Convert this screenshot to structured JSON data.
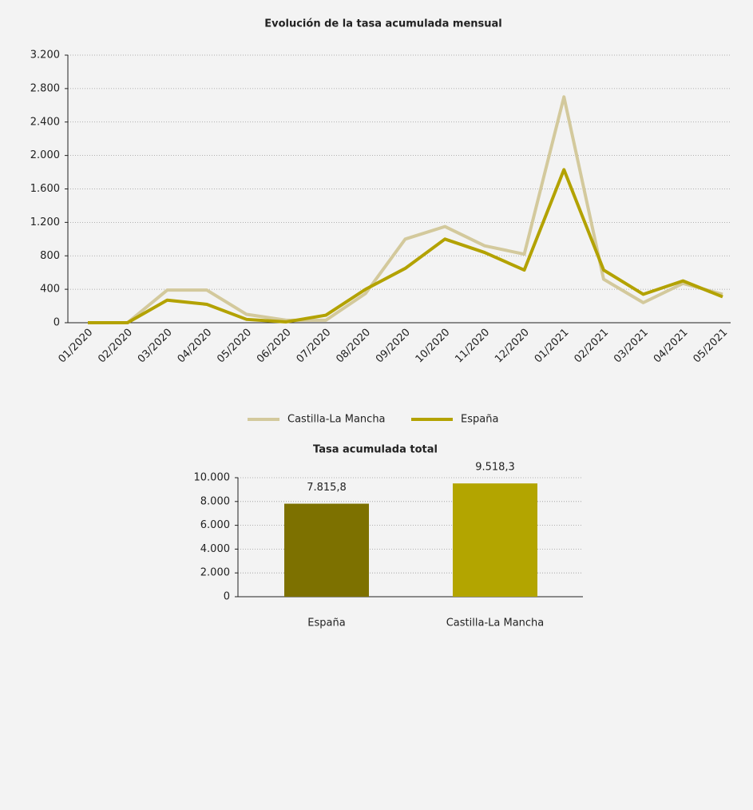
{
  "chart_data": [
    {
      "type": "line",
      "title": "Evolución de la tasa acumulada mensual",
      "categories": [
        "01/2020",
        "02/2020",
        "03/2020",
        "04/2020",
        "05/2020",
        "06/2020",
        "07/2020",
        "08/2020",
        "09/2020",
        "10/2020",
        "11/2020",
        "12/2020",
        "01/2021",
        "02/2021",
        "03/2021",
        "04/2021",
        "05/2021"
      ],
      "series": [
        {
          "name": "Castilla-La Mancha",
          "color": "#d3c99c",
          "values": [
            0,
            0,
            390,
            390,
            100,
            30,
            30,
            350,
            1000,
            1150,
            920,
            820,
            2700,
            520,
            240,
            470,
            340
          ]
        },
        {
          "name": "España",
          "color": "#b3a200",
          "values": [
            0,
            0,
            270,
            220,
            40,
            10,
            90,
            400,
            650,
            1000,
            840,
            630,
            1830,
            630,
            340,
            500,
            310
          ]
        }
      ],
      "ylim": [
        0,
        3200
      ],
      "yticks": [
        0,
        400,
        800,
        {
          "value": 1200,
          "label": "1.200"
        },
        {
          "value": 1600,
          "label": "1.600"
        },
        {
          "value": 2000,
          "label": "2.000"
        },
        {
          "value": 2400,
          "label": "2.400"
        },
        {
          "value": 2800,
          "label": "2.800"
        },
        {
          "value": 3200,
          "label": "3.200"
        }
      ],
      "grid": true,
      "legend": "bottom"
    },
    {
      "type": "bar",
      "title": "Tasa acumulada total",
      "categories": [
        "España",
        "Castilla-La Mancha"
      ],
      "values": [
        7815.8,
        9518.3
      ],
      "value_labels": [
        "7.815,8",
        "9.518,3"
      ],
      "colors": [
        "#7d7100",
        "#b3a500"
      ],
      "ylim": [
        0,
        10000
      ],
      "yticks": [
        0,
        {
          "value": 2000,
          "label": "2.000"
        },
        {
          "value": 4000,
          "label": "4.000"
        },
        {
          "value": 6000,
          "label": "6.000"
        },
        {
          "value": 8000,
          "label": "8.000"
        },
        {
          "value": 10000,
          "label": "10.000"
        }
      ],
      "grid": true
    }
  ]
}
